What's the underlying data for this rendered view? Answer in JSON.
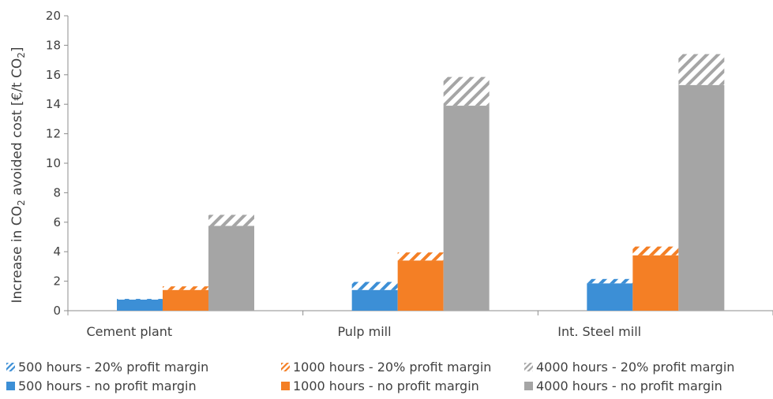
{
  "chart_data": {
    "type": "bar",
    "categories": [
      "Cement plant",
      "Pulp mill",
      "Int. Steel mill"
    ],
    "ylabel_parts": [
      "Increase in CO",
      "2",
      " avoided cost [€/t CO",
      "2",
      "]"
    ],
    "ylim": [
      0,
      20
    ],
    "yticks": [
      0,
      2,
      4,
      6,
      8,
      10,
      12,
      14,
      16,
      18,
      20
    ],
    "grid": false,
    "legend_position": "bottom",
    "groups": [
      {
        "name": "500 hours",
        "color": "#3c8fd6",
        "no_profit": [
          0.75,
          1.4,
          1.85
        ],
        "with_profit": [
          0.8,
          1.95,
          2.15
        ]
      },
      {
        "name": "1000 hours",
        "color": "#f47f25",
        "no_profit": [
          1.4,
          3.4,
          3.75
        ],
        "with_profit": [
          1.65,
          3.95,
          4.35
        ]
      },
      {
        "name": "4000 hours",
        "color": "#a5a5a5",
        "no_profit": [
          5.75,
          13.9,
          15.3
        ],
        "with_profit": [
          6.5,
          15.85,
          17.4
        ]
      }
    ],
    "legend": [
      [
        "500 hours - 20% profit margin",
        "1000 hours - 20% profit margin",
        "4000 hours - 20% profit margin"
      ],
      [
        "500 hours - no profit margin",
        "1000 hours - no profit margin",
        "4000 hours - no profit margin"
      ]
    ]
  }
}
